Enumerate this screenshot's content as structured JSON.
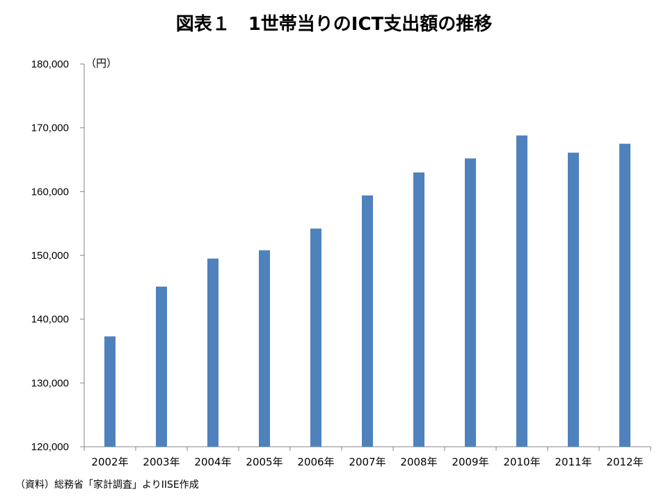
{
  "title": "図表１　1世帯当りのICT支出額の推移",
  "unit_label": "（円）",
  "source": "（資料）総務省「家計調査」よりIISE作成",
  "colors": {
    "bar": "#4F81BD",
    "axis": "#868686"
  },
  "chart_data": {
    "type": "bar",
    "title": "図表１　1世帯当りのICT支出額の推移",
    "xlabel": "",
    "ylabel": "（円）",
    "categories": [
      "2002年",
      "2003年",
      "2004年",
      "2005年",
      "2006年",
      "2007年",
      "2008年",
      "2009年",
      "2010年",
      "2011年",
      "2012年"
    ],
    "values": [
      137300,
      145100,
      149500,
      150800,
      154200,
      159400,
      163000,
      165200,
      168800,
      166100,
      167500
    ],
    "ylim": [
      120000,
      180000
    ],
    "yticks": [
      120000,
      130000,
      140000,
      150000,
      160000,
      170000,
      180000
    ],
    "ytick_labels": [
      "120,000",
      "130,000",
      "140,000",
      "150,000",
      "160,000",
      "170,000",
      "180,000"
    ],
    "grid": false,
    "legend": "none"
  }
}
